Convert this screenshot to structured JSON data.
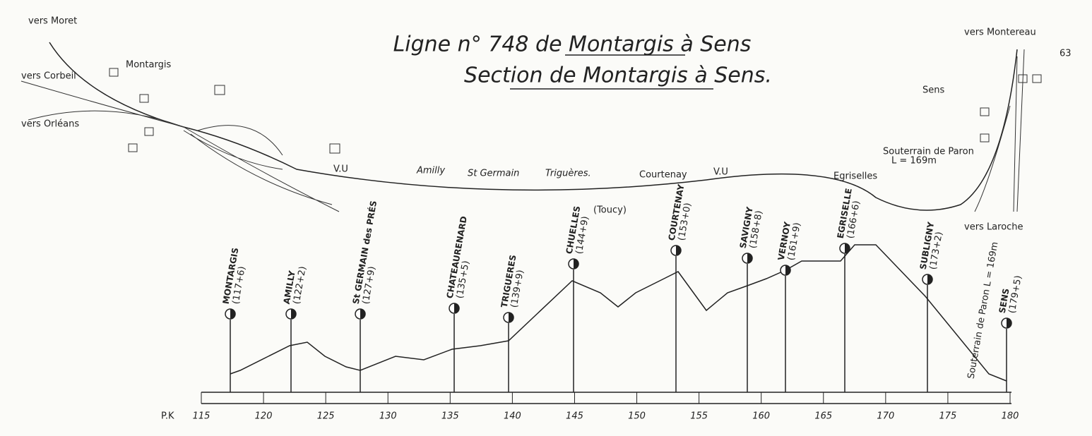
{
  "header": {
    "title": "Ligne n° 748 de Montargis à Sens",
    "subtitle": "Section de Montargis à Sens.",
    "page": "63"
  },
  "map": {
    "labels": [
      "vers Moret",
      "vers Corbeil",
      "vers Orléans",
      "Montargis",
      "Amilly",
      "St Germain",
      "Triguères.",
      "(Toucy)",
      "Courtenay",
      "V.U",
      "V.U",
      "Egriselles",
      "Sens",
      "Souterrain de Paron",
      "L = 169m",
      "vers Montereau",
      "vers Laroche"
    ]
  },
  "profile": {
    "stations": [
      {
        "name": "MONTARGIS",
        "pk": "(117+6)"
      },
      {
        "name": "AMILLY",
        "pk": "(122+2)"
      },
      {
        "name": "St GERMAIN des PRÉS",
        "pk": "(127+9)"
      },
      {
        "name": "CHATEAURENARD",
        "pk": "(135+5)"
      },
      {
        "name": "TRIGUERES",
        "pk": "(139+9)"
      },
      {
        "name": "CHUELLES",
        "pk": "(144+9)"
      },
      {
        "name": "COURTENAY",
        "pk": "(153+0)"
      },
      {
        "name": "SAVIGNY",
        "pk": "(158+8)"
      },
      {
        "name": "VERNOY",
        "pk": "(161+9)"
      },
      {
        "name": "EGRISELLE",
        "pk": "(166+6)"
      },
      {
        "name": "SUBLIGNY",
        "pk": "(173+2)"
      },
      {
        "name": "SENS",
        "pk": "(179+5)"
      }
    ],
    "tunnel": "Souterrain de Paron L = 169m",
    "axis": {
      "label": "P.K",
      "ticks": [
        115,
        120,
        125,
        130,
        135,
        140,
        145,
        150,
        155,
        160,
        165,
        170,
        175,
        180
      ]
    }
  }
}
